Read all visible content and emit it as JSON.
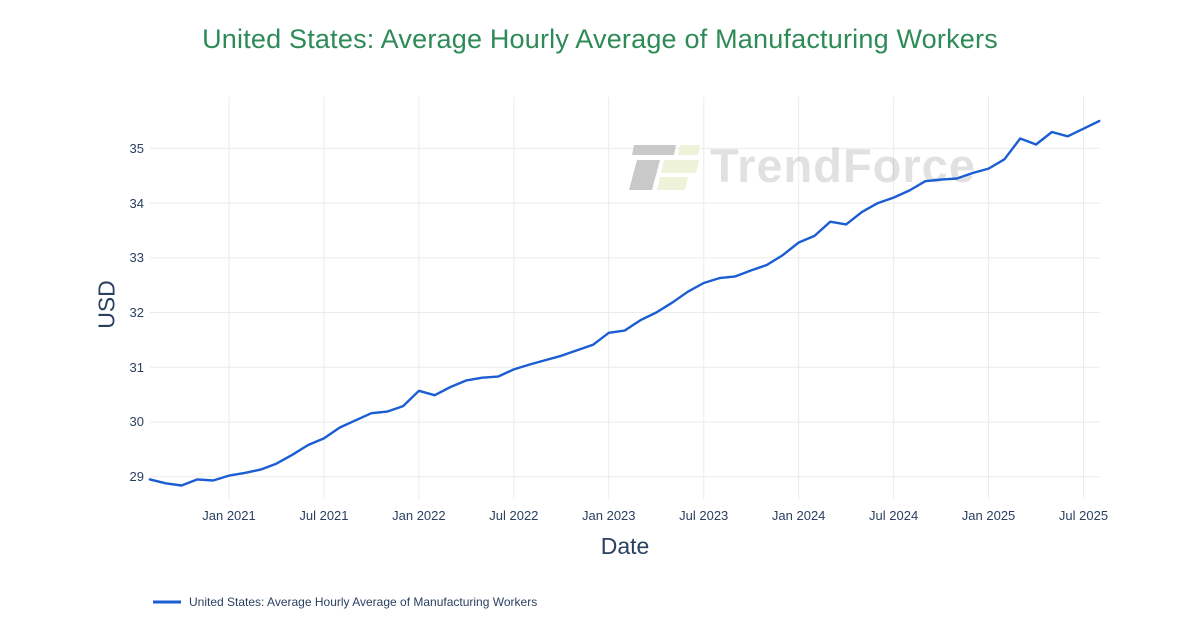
{
  "page": {
    "title": "United States: Average Hourly Average of Manufacturing Workers"
  },
  "watermark": {
    "text": "TrendForce"
  },
  "legend": {
    "label": "United States: Average Hourly Average of Manufacturing Workers"
  },
  "axes": {
    "x_title": "Date",
    "y_title": "USD"
  },
  "colors": {
    "title": "#2e8b57",
    "line": "#1b5dd2",
    "axis_text": "#2a3f5f",
    "grid": "#ebebeb",
    "logo_gray": "#c9c9c9",
    "logo_green": "#edf2d9"
  },
  "chart_data": {
    "type": "line",
    "title": "United States: Average Hourly Average of Manufacturing Workers",
    "xlabel": "Date",
    "ylabel": "USD",
    "grid": true,
    "legend_position": "bottom-left",
    "ylim": [
      28.6,
      35.9
    ],
    "yticks": [
      29,
      30,
      31,
      32,
      33,
      34,
      35
    ],
    "xticks": [
      "Jan 2021",
      "Jul 2021",
      "Jan 2022",
      "Jul 2022",
      "Jan 2023",
      "Jul 2023",
      "Jan 2024",
      "Jul 2024",
      "Jan 2025",
      "Jul 2025"
    ],
    "x": [
      "Aug 2020",
      "Sep 2020",
      "Oct 2020",
      "Nov 2020",
      "Dec 2020",
      "Jan 2021",
      "Feb 2021",
      "Mar 2021",
      "Apr 2021",
      "May 2021",
      "Jun 2021",
      "Jul 2021",
      "Aug 2021",
      "Sep 2021",
      "Oct 2021",
      "Nov 2021",
      "Dec 2021",
      "Jan 2022",
      "Feb 2022",
      "Mar 2022",
      "Apr 2022",
      "May 2022",
      "Jun 2022",
      "Jul 2022",
      "Aug 2022",
      "Sep 2022",
      "Oct 2022",
      "Nov 2022",
      "Dec 2022",
      "Jan 2023",
      "Feb 2023",
      "Mar 2023",
      "Apr 2023",
      "May 2023",
      "Jun 2023",
      "Jul 2023",
      "Aug 2023",
      "Sep 2023",
      "Oct 2023",
      "Nov 2023",
      "Dec 2023",
      "Jan 2024",
      "Feb 2024",
      "Mar 2024",
      "Apr 2024",
      "May 2024",
      "Jun 2024",
      "Jul 2024",
      "Aug 2024",
      "Sep 2024",
      "Oct 2024",
      "Nov 2024",
      "Dec 2024",
      "Jan 2025",
      "Feb 2025",
      "Mar 2025",
      "Apr 2025",
      "May 2025",
      "Jun 2025",
      "Jul 2025",
      "Aug 2025"
    ],
    "series": [
      {
        "name": "United States: Average Hourly Average of Manufacturing Workers",
        "color": "#1b5dd2",
        "values": [
          28.95,
          28.88,
          28.84,
          28.95,
          28.93,
          29.02,
          29.07,
          29.13,
          29.24,
          29.4,
          29.58,
          29.7,
          29.9,
          30.03,
          30.16,
          30.19,
          30.29,
          30.57,
          30.49,
          30.64,
          30.76,
          30.81,
          30.83,
          30.96,
          31.05,
          31.13,
          31.21,
          31.31,
          31.41,
          31.63,
          31.67,
          31.86,
          32.0,
          32.18,
          32.38,
          32.54,
          32.63,
          32.66,
          32.77,
          32.87,
          33.05,
          33.28,
          33.4,
          33.66,
          33.61,
          33.84,
          34.0,
          34.1,
          34.23,
          34.4,
          34.43,
          34.45,
          34.55,
          34.63,
          34.8,
          35.18,
          35.07,
          35.3,
          35.22,
          35.36,
          35.5
        ]
      }
    ]
  }
}
